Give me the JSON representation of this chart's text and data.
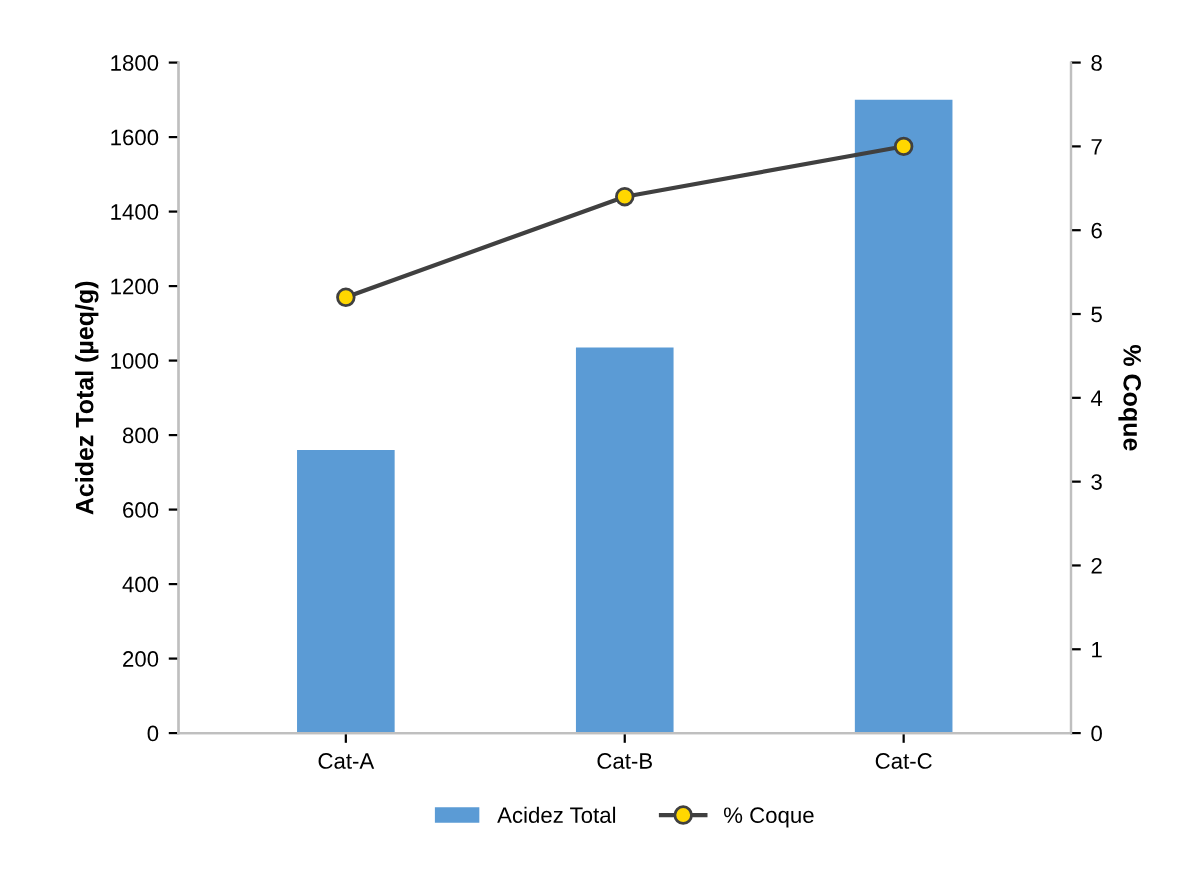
{
  "chart_data": {
    "type": "bar",
    "categories": [
      "Cat-A",
      "Cat-B",
      "Cat-C"
    ],
    "series": [
      {
        "name": "Acidez Total",
        "color": "#5b9bd5",
        "values": [
          760,
          1035,
          1700
        ]
      },
      {
        "name": "% Coque",
        "type": "line",
        "axis": "y2",
        "color": "#404040",
        "marker": "circle",
        "values": [
          5.2,
          6.4,
          7.0
        ]
      }
    ],
    "ylabel": "Acidez Total (µeq/g)",
    "y2label": "% Coque",
    "ylim": [
      0,
      1800
    ],
    "yticks": [
      0,
      200,
      400,
      600,
      800,
      1000,
      1200,
      1400,
      1600,
      1800
    ],
    "y2lim": [
      0,
      8
    ],
    "y2ticks": [
      0,
      1,
      2,
      3,
      4,
      5,
      6,
      7,
      8
    ],
    "grid": false,
    "legend": "bottom"
  }
}
